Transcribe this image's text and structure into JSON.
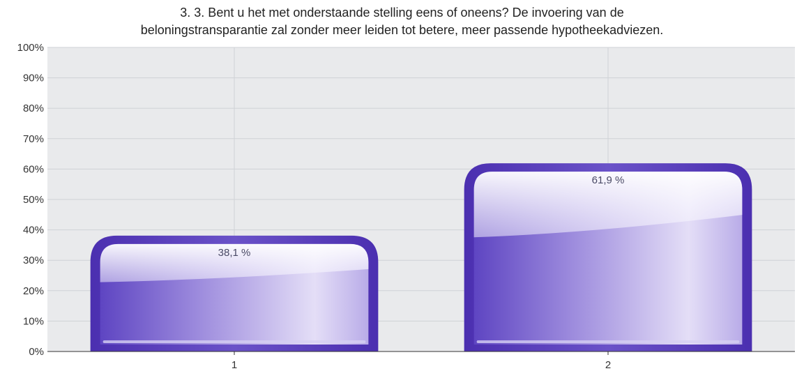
{
  "chart_data": {
    "type": "bar",
    "title": [
      "3. 3. Bent u het met onderstaande stelling eens of oneens? De invoering van de",
      "beloningstransparantie zal zonder meer leiden tot betere, meer passende hypotheekadviezen."
    ],
    "categories": [
      "1",
      "2"
    ],
    "values": [
      38.1,
      61.9
    ],
    "data_labels": [
      "38,1 %",
      "61,9 %"
    ],
    "y_ticks": [
      "0%",
      "10%",
      "20%",
      "30%",
      "40%",
      "50%",
      "60%",
      "70%",
      "80%",
      "90%",
      "100%"
    ],
    "ylim": [
      0,
      100
    ],
    "grid": true,
    "colors": {
      "plot_background": "#e9eaec",
      "grid": "#cfd2d6",
      "bar_dark": "#5a3fbf",
      "bar_mid": "#8a75d6",
      "bar_light": "#ece8fa"
    }
  }
}
